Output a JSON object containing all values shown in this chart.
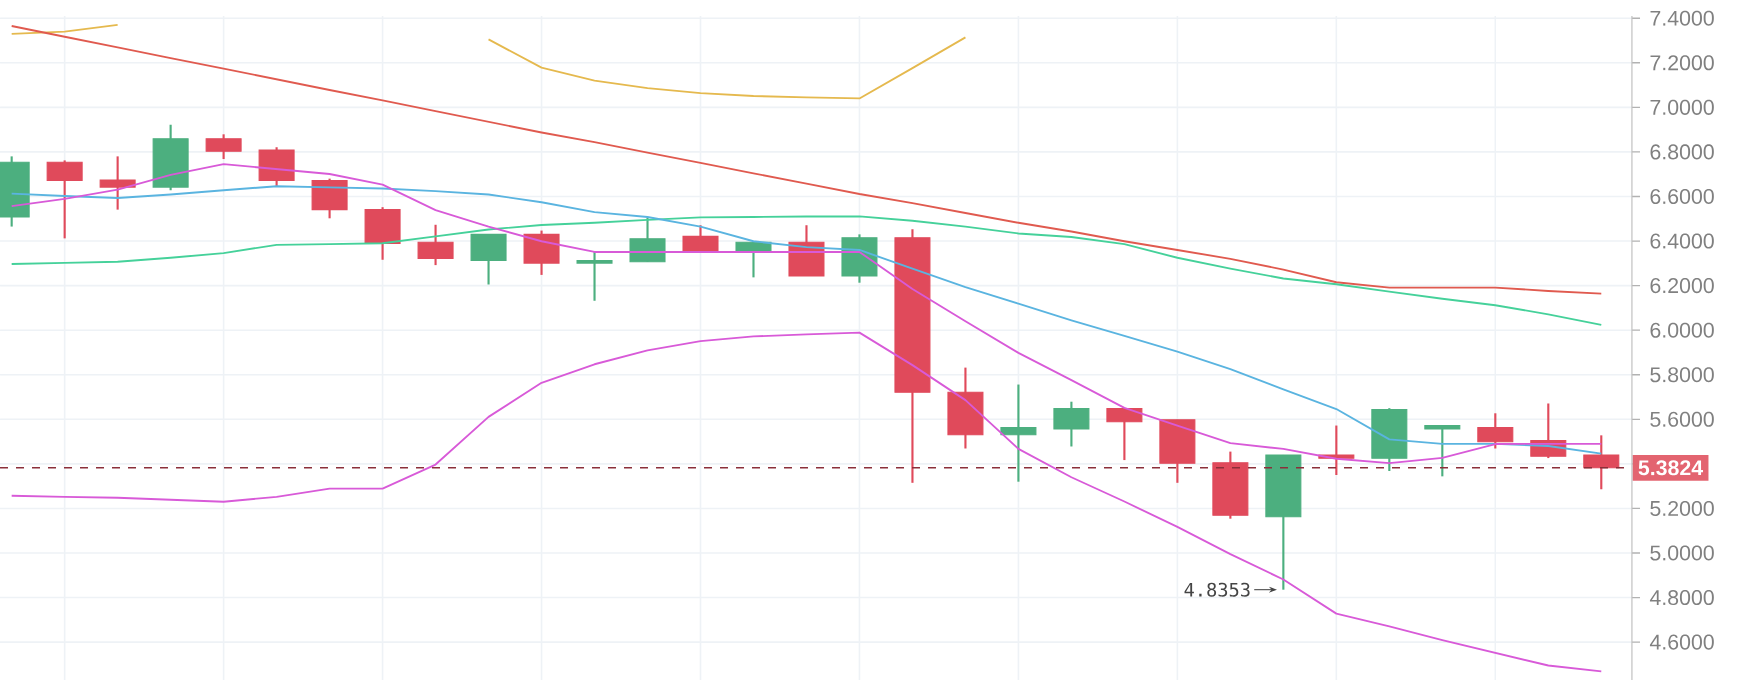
{
  "chart_data": {
    "type": "candlestick",
    "categories": [
      null,
      null,
      null,
      null,
      null,
      null,
      null,
      null,
      null,
      null,
      null,
      null,
      null,
      null,
      null,
      null,
      null,
      null,
      null,
      null,
      null,
      null,
      null,
      null,
      null,
      null,
      null,
      null,
      null,
      null,
      null
    ],
    "ohlc": [
      [
        6.508,
        6.78,
        6.465,
        6.754
      ],
      [
        6.754,
        6.762,
        6.412,
        6.672
      ],
      [
        6.674,
        6.78,
        6.541,
        6.642
      ],
      [
        6.642,
        6.922,
        6.628,
        6.859
      ],
      [
        6.859,
        6.879,
        6.768,
        6.803
      ],
      [
        6.809,
        6.821,
        6.646,
        6.672
      ],
      [
        6.672,
        6.68,
        6.502,
        6.541
      ],
      [
        6.541,
        6.552,
        6.316,
        6.389
      ],
      [
        6.395,
        6.473,
        6.292,
        6.322
      ],
      [
        6.313,
        6.43,
        6.205,
        6.43
      ],
      [
        6.43,
        6.447,
        6.248,
        6.301
      ],
      [
        6.301,
        6.351,
        6.132,
        6.313
      ],
      [
        6.307,
        6.506,
        6.307,
        6.41
      ],
      [
        6.421,
        6.471,
        6.351,
        6.351
      ],
      [
        6.353,
        6.395,
        6.237,
        6.395
      ],
      [
        6.395,
        6.471,
        6.243,
        6.243
      ],
      [
        6.243,
        6.43,
        6.213,
        6.415
      ],
      [
        6.415,
        6.453,
        5.315,
        5.721
      ],
      [
        5.721,
        5.832,
        5.469,
        5.531
      ],
      [
        5.531,
        5.756,
        5.32,
        5.563
      ],
      [
        5.557,
        5.679,
        5.478,
        5.648
      ],
      [
        5.648,
        5.648,
        5.417,
        5.589
      ],
      [
        5.598,
        5.598,
        5.315,
        5.403
      ],
      [
        5.405,
        5.455,
        5.154,
        5.169
      ],
      [
        5.163,
        5.44,
        4.8353,
        5.44
      ],
      [
        5.44,
        5.572,
        5.35,
        5.425
      ],
      [
        5.425,
        5.65,
        5.368,
        5.644
      ],
      [
        5.557,
        5.572,
        5.344,
        5.572
      ],
      [
        5.563,
        5.627,
        5.469,
        5.499
      ],
      [
        5.505,
        5.671,
        5.426,
        5.434
      ],
      [
        5.44,
        5.528,
        5.286,
        5.3824
      ]
    ],
    "colors": [
      "#4caf7f",
      "#e04a5b",
      "#e04a5b",
      "#4caf7f",
      "#e04a5b",
      "#e04a5b",
      "#e04a5b",
      "#e04a5b",
      "#e04a5b",
      "#4caf7f",
      "#e04a5b",
      "#4caf7f",
      "#4caf7f",
      "#e04a5b",
      "#4caf7f",
      "#e04a5b",
      "#4caf7f",
      "#e04a5b",
      "#e04a5b",
      "#4caf7f",
      "#4caf7f",
      "#e04a5b",
      "#e04a5b",
      "#e04a5b",
      "#4caf7f",
      "#e04a5b",
      "#4caf7f",
      "#4caf7f",
      "#e04a5b",
      "#e04a5b",
      "#e04a5b"
    ],
    "series": [
      {
        "type": "line",
        "color": "#e5b94e",
        "values": [
          7.33,
          7.34,
          7.37,
          null,
          null,
          null,
          null,
          null,
          null,
          7.305,
          7.178,
          7.12,
          7.086,
          7.064,
          7.051,
          7.045,
          7.04,
          7.176,
          7.314,
          null,
          null,
          null,
          null,
          null,
          null,
          null,
          null,
          null,
          null,
          null,
          null
        ]
      },
      {
        "type": "line",
        "color": "#e05a4f",
        "values": [
          7.365,
          7.317,
          7.269,
          7.221,
          7.174,
          7.126,
          7.078,
          7.031,
          6.983,
          6.935,
          6.887,
          6.844,
          6.797,
          6.751,
          6.704,
          6.658,
          6.611,
          6.57,
          6.526,
          6.482,
          6.443,
          6.399,
          6.36,
          6.32,
          6.272,
          6.215,
          6.191,
          6.191,
          6.191,
          6.176,
          6.164
        ]
      },
      {
        "type": "line",
        "color": "#45d19a",
        "values": [
          6.297,
          6.302,
          6.307,
          6.325,
          6.346,
          6.383,
          6.386,
          6.39,
          6.421,
          6.452,
          6.472,
          6.482,
          6.495,
          6.506,
          6.508,
          6.51,
          6.511,
          6.491,
          6.465,
          6.434,
          6.418,
          6.386,
          6.325,
          6.276,
          6.232,
          6.206,
          6.173,
          6.141,
          6.112,
          6.071,
          6.024
        ]
      },
      {
        "type": "line",
        "color": "#5ab4e0",
        "values": [
          6.613,
          6.602,
          6.593,
          6.609,
          6.628,
          6.646,
          6.641,
          6.636,
          6.624,
          6.609,
          6.574,
          6.53,
          6.508,
          6.465,
          6.399,
          6.373,
          6.36,
          6.276,
          6.193,
          6.119,
          6.044,
          5.974,
          5.904,
          5.825,
          5.734,
          5.646,
          5.51,
          5.49,
          5.49,
          5.48,
          5.446
        ]
      },
      {
        "type": "line",
        "color": "#d85ad8",
        "values": [
          6.557,
          6.589,
          6.631,
          6.697,
          6.745,
          6.723,
          6.701,
          6.653,
          6.539,
          6.465,
          6.399,
          6.351,
          6.351,
          6.351,
          6.351,
          6.351,
          6.351,
          6.185,
          6.04,
          5.898,
          5.776,
          5.651,
          5.572,
          5.493,
          5.467,
          5.423,
          5.403,
          5.427,
          5.489,
          5.49,
          5.49
        ]
      },
      {
        "type": "line",
        "color": "#d85ad8",
        "values": [
          5.257,
          5.252,
          5.248,
          5.239,
          5.23,
          5.252,
          5.289,
          5.289,
          5.397,
          5.611,
          5.764,
          5.847,
          5.909,
          5.951,
          5.972,
          5.981,
          5.989,
          5.843,
          5.686,
          5.467,
          5.34,
          5.231,
          5.117,
          4.995,
          4.881,
          4.728,
          4.671,
          4.609,
          4.552,
          4.495,
          4.469
        ]
      }
    ],
    "ylim": [
      4.43,
      7.41
    ],
    "yticks": [
      {
        "value": 4.6,
        "label": "4.6000"
      },
      {
        "value": 4.8,
        "label": "4.8000"
      },
      {
        "value": 5.0,
        "label": "5.0000"
      },
      {
        "value": 5.2,
        "label": "5.2000"
      },
      {
        "value": 5.4,
        "label": null
      },
      {
        "value": 5.6,
        "label": "5.6000"
      },
      {
        "value": 5.8,
        "label": "5.8000"
      },
      {
        "value": 6.0,
        "label": "6.0000"
      },
      {
        "value": 6.2,
        "label": "6.2000"
      },
      {
        "value": 6.4,
        "label": "6.4000"
      },
      {
        "value": 6.6,
        "label": "6.6000"
      },
      {
        "value": 6.8,
        "label": "6.8000"
      },
      {
        "value": 7.0,
        "label": "7.0000"
      },
      {
        "value": 7.2,
        "label": "7.2000"
      },
      {
        "value": 7.4,
        "label": "7.4000"
      }
    ],
    "grid": true,
    "ref_lines": [
      {
        "axis": "y",
        "value": 5.3824,
        "label": "5.3824",
        "color": "#8b2f3a",
        "line_style": "dashed"
      }
    ],
    "annotations": [
      "4.8353"
    ]
  }
}
